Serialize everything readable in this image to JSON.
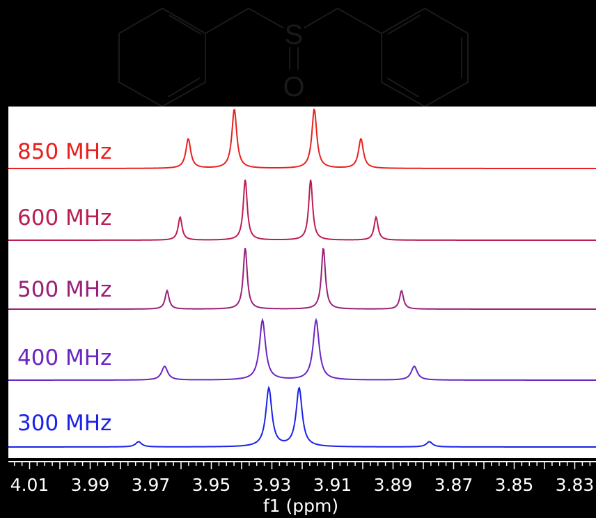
{
  "molecule": {
    "sulfur_label": "S",
    "oxygen_label": "O"
  },
  "chart_data": {
    "type": "line",
    "xlabel": "f1 (ppm)",
    "xlim": [
      4.017,
      3.823
    ],
    "x_reversed": true,
    "ticks": [
      "4.01",
      "3.99",
      "3.97",
      "3.95",
      "3.93",
      "3.91",
      "3.89",
      "3.87",
      "3.85",
      "3.83"
    ],
    "tick_values": [
      4.01,
      3.99,
      3.97,
      3.95,
      3.93,
      3.91,
      3.89,
      3.87,
      3.85,
      3.83
    ],
    "series": [
      {
        "name": "850 MHz",
        "color": "#e8201e",
        "peaks_ppm": [
          3.9576,
          3.9424,
          3.916,
          3.9006
        ],
        "peak_rel": [
          0.5,
          1.0,
          1.0,
          0.5
        ]
      },
      {
        "name": "600 MHz",
        "color": "#bb1e52",
        "peaks_ppm": [
          3.9603,
          3.9388,
          3.9172,
          3.8956
        ],
        "peak_rel": [
          0.38,
          1.0,
          1.0,
          0.38
        ]
      },
      {
        "name": "500 MHz",
        "color": "#982079",
        "peaks_ppm": [
          3.9646,
          3.9388,
          3.913,
          3.8872
        ],
        "peak_rel": [
          0.3,
          1.0,
          1.0,
          0.3
        ]
      },
      {
        "name": "400 MHz",
        "color": "#6a25c2",
        "peaks_ppm": [
          3.9654,
          3.9331,
          3.9154,
          3.883
        ],
        "peak_rel": [
          0.23,
          1.0,
          1.0,
          0.23
        ]
      },
      {
        "name": "300 MHz",
        "color": "#1a22e8",
        "peaks_ppm": [
          3.974,
          3.931,
          3.921,
          3.878
        ],
        "peak_rel": [
          0.09,
          1.0,
          1.0,
          0.09
        ]
      }
    ]
  }
}
